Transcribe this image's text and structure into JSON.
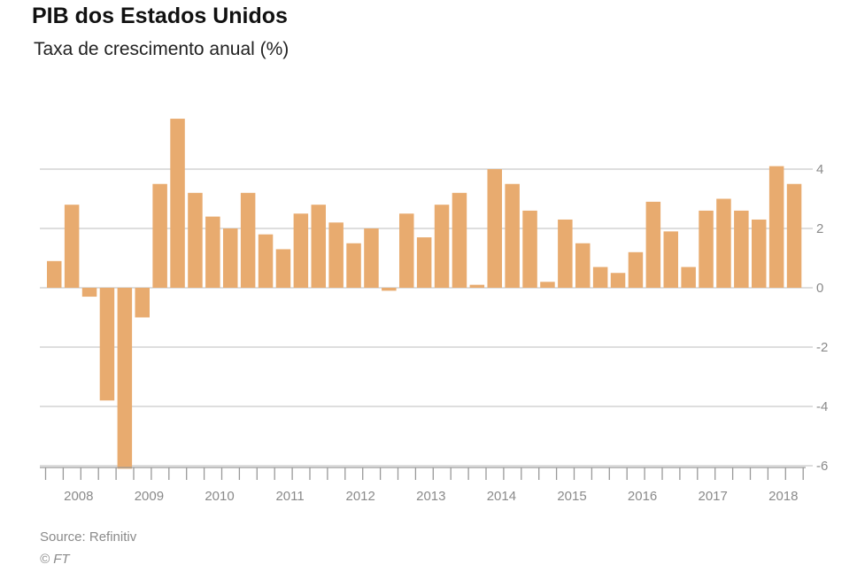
{
  "title": "PIB dos Estados Unidos",
  "subtitle": "Taxa de crescimento anual (%)",
  "source": "Source: Refinitiv",
  "copyright": "© FT",
  "colors": {
    "bar": "#e8ab6f",
    "grid": "#bdbdbd",
    "axis": "#999999",
    "text": "#8a8a8a"
  },
  "chart_data": {
    "type": "bar",
    "title": "PIB dos Estados Unidos",
    "subtitle": "Taxa de crescimento anual (%)",
    "xlabel": "",
    "ylabel": "",
    "ylim": [
      -6,
      6
    ],
    "yticks": [
      4,
      2,
      0,
      -2,
      -4,
      -6
    ],
    "ytick_labels": [
      "4",
      "2",
      "0",
      "-2",
      "-4",
      "-6"
    ],
    "xtick_labels": [
      "2008",
      "2009",
      "2010",
      "2011",
      "2012",
      "2013",
      "2014",
      "2015",
      "2016",
      "2017",
      "2018"
    ],
    "grid": true,
    "categories": [
      "2008 Q1",
      "2008 Q2",
      "2008 Q3",
      "2008 Q4",
      "2009 Q1",
      "2009 Q2",
      "2009 Q3",
      "2009 Q4",
      "2010 Q1",
      "2010 Q2",
      "2010 Q3",
      "2010 Q4",
      "2011 Q1",
      "2011 Q2",
      "2011 Q3",
      "2011 Q4",
      "2012 Q1",
      "2012 Q2",
      "2012 Q3",
      "2012 Q4",
      "2013 Q1",
      "2013 Q2",
      "2013 Q3",
      "2013 Q4",
      "2014 Q1",
      "2014 Q2",
      "2014 Q3",
      "2014 Q4",
      "2015 Q1",
      "2015 Q2",
      "2015 Q3",
      "2015 Q4",
      "2016 Q1",
      "2016 Q2",
      "2016 Q3",
      "2016 Q4",
      "2017 Q1",
      "2017 Q2",
      "2017 Q3",
      "2017 Q4",
      "2018 Q1",
      "2018 Q2",
      "2018 Q3"
    ],
    "values": [
      0.9,
      2.8,
      -0.3,
      -3.8,
      -6.1,
      -1.0,
      3.5,
      5.7,
      3.2,
      2.4,
      2.0,
      3.2,
      1.8,
      1.3,
      2.5,
      2.8,
      2.2,
      1.5,
      2.0,
      -0.1,
      2.5,
      1.7,
      2.8,
      3.2,
      0.1,
      4.0,
      3.5,
      2.6,
      0.2,
      2.3,
      1.5,
      0.7,
      0.5,
      1.2,
      2.9,
      1.9,
      0.7,
      2.6,
      3.0,
      2.6,
      2.3,
      4.1,
      3.5
    ]
  }
}
